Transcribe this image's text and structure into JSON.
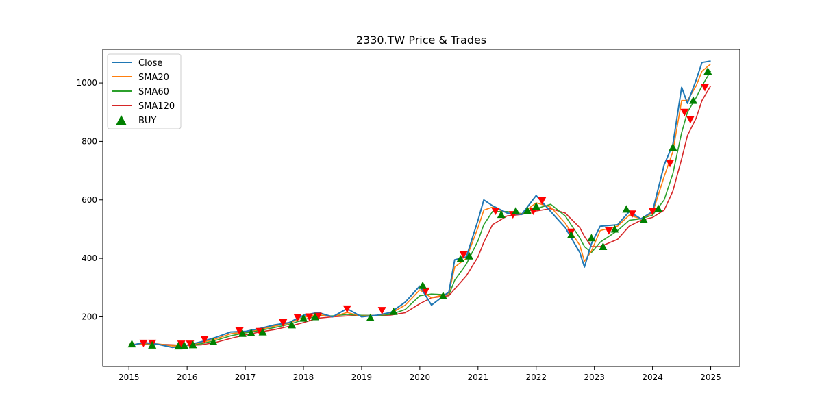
{
  "chart_data": {
    "type": "line",
    "title": "2330.TW Price & Trades",
    "xlabel": "",
    "ylabel": "",
    "xlim": [
      2014.55,
      2025.5
    ],
    "ylim": [
      30,
      1115
    ],
    "x_ticks": [
      2015,
      2016,
      2017,
      2018,
      2019,
      2020,
      2021,
      2022,
      2023,
      2024,
      2025
    ],
    "x_tick_labels": [
      "2015",
      "2016",
      "2017",
      "2018",
      "2019",
      "2020",
      "2021",
      "2022",
      "2023",
      "2024",
      "2025"
    ],
    "y_ticks": [
      200,
      400,
      600,
      800,
      1000
    ],
    "y_tick_labels": [
      "200",
      "400",
      "600",
      "800",
      "1000"
    ],
    "grid": false,
    "legend_position": "top-left",
    "legend": [
      "Close",
      "SMA20",
      "SMA60",
      "SMA120",
      "BUY"
    ],
    "series": [
      {
        "name": "Close",
        "color": "#1f77b4",
        "points": [
          [
            2015.0,
            100
          ],
          [
            2015.25,
            112
          ],
          [
            2015.5,
            106
          ],
          [
            2015.75,
            95
          ],
          [
            2016.0,
            103
          ],
          [
            2016.25,
            115
          ],
          [
            2016.5,
            130
          ],
          [
            2016.75,
            148
          ],
          [
            2017.0,
            150
          ],
          [
            2017.25,
            160
          ],
          [
            2017.5,
            172
          ],
          [
            2017.75,
            180
          ],
          [
            2018.0,
            205
          ],
          [
            2018.25,
            215
          ],
          [
            2018.5,
            200
          ],
          [
            2018.75,
            228
          ],
          [
            2019.0,
            200
          ],
          [
            2019.25,
            205
          ],
          [
            2019.5,
            215
          ],
          [
            2019.75,
            250
          ],
          [
            2020.0,
            305
          ],
          [
            2020.2,
            240
          ],
          [
            2020.5,
            285
          ],
          [
            2020.6,
            395
          ],
          [
            2020.8,
            405
          ],
          [
            2021.0,
            530
          ],
          [
            2021.1,
            600
          ],
          [
            2021.25,
            580
          ],
          [
            2021.5,
            555
          ],
          [
            2021.75,
            550
          ],
          [
            2022.0,
            615
          ],
          [
            2022.25,
            560
          ],
          [
            2022.5,
            505
          ],
          [
            2022.75,
            420
          ],
          [
            2022.83,
            370
          ],
          [
            2022.95,
            450
          ],
          [
            2023.1,
            510
          ],
          [
            2023.4,
            515
          ],
          [
            2023.6,
            560
          ],
          [
            2023.8,
            535
          ],
          [
            2024.0,
            560
          ],
          [
            2024.2,
            720
          ],
          [
            2024.35,
            790
          ],
          [
            2024.5,
            985
          ],
          [
            2024.6,
            930
          ],
          [
            2024.75,
            1010
          ],
          [
            2024.85,
            1070
          ],
          [
            2025.0,
            1075
          ]
        ]
      },
      {
        "name": "SMA20",
        "color": "#ff7f0e",
        "points": [
          [
            2015.0,
            102
          ],
          [
            2015.25,
            108
          ],
          [
            2015.5,
            107
          ],
          [
            2015.75,
            100
          ],
          [
            2016.0,
            102
          ],
          [
            2016.25,
            112
          ],
          [
            2016.5,
            125
          ],
          [
            2016.75,
            142
          ],
          [
            2017.0,
            148
          ],
          [
            2017.25,
            157
          ],
          [
            2017.5,
            168
          ],
          [
            2017.75,
            178
          ],
          [
            2018.0,
            198
          ],
          [
            2018.25,
            208
          ],
          [
            2018.5,
            200
          ],
          [
            2018.75,
            215
          ],
          [
            2019.0,
            202
          ],
          [
            2019.25,
            205
          ],
          [
            2019.5,
            212
          ],
          [
            2019.75,
            240
          ],
          [
            2020.0,
            292
          ],
          [
            2020.2,
            265
          ],
          [
            2020.5,
            280
          ],
          [
            2020.6,
            370
          ],
          [
            2020.8,
            400
          ],
          [
            2021.0,
            505
          ],
          [
            2021.1,
            565
          ],
          [
            2021.25,
            575
          ],
          [
            2021.5,
            555
          ],
          [
            2021.75,
            552
          ],
          [
            2022.0,
            590
          ],
          [
            2022.25,
            575
          ],
          [
            2022.5,
            520
          ],
          [
            2022.75,
            445
          ],
          [
            2022.83,
            390
          ],
          [
            2022.95,
            425
          ],
          [
            2023.1,
            495
          ],
          [
            2023.4,
            510
          ],
          [
            2023.6,
            548
          ],
          [
            2023.8,
            535
          ],
          [
            2024.0,
            555
          ],
          [
            2024.2,
            680
          ],
          [
            2024.35,
            765
          ],
          [
            2024.5,
            940
          ],
          [
            2024.6,
            940
          ],
          [
            2024.75,
            990
          ],
          [
            2024.85,
            1040
          ],
          [
            2025.0,
            1065
          ]
        ]
      },
      {
        "name": "SMA60",
        "color": "#2ca02c",
        "points": [
          [
            2015.0,
            104
          ],
          [
            2015.25,
            105
          ],
          [
            2015.5,
            106
          ],
          [
            2015.75,
            102
          ],
          [
            2016.0,
            101
          ],
          [
            2016.25,
            108
          ],
          [
            2016.5,
            120
          ],
          [
            2016.75,
            135
          ],
          [
            2017.0,
            145
          ],
          [
            2017.25,
            153
          ],
          [
            2017.5,
            163
          ],
          [
            2017.75,
            174
          ],
          [
            2018.0,
            190
          ],
          [
            2018.25,
            203
          ],
          [
            2018.5,
            203
          ],
          [
            2018.75,
            208
          ],
          [
            2019.0,
            205
          ],
          [
            2019.25,
            204
          ],
          [
            2019.5,
            208
          ],
          [
            2019.75,
            225
          ],
          [
            2020.0,
            272
          ],
          [
            2020.2,
            278
          ],
          [
            2020.5,
            275
          ],
          [
            2020.6,
            325
          ],
          [
            2020.8,
            380
          ],
          [
            2021.0,
            460
          ],
          [
            2021.1,
            515
          ],
          [
            2021.25,
            560
          ],
          [
            2021.5,
            560
          ],
          [
            2021.75,
            553
          ],
          [
            2022.0,
            570
          ],
          [
            2022.25,
            585
          ],
          [
            2022.5,
            545
          ],
          [
            2022.75,
            470
          ],
          [
            2022.83,
            440
          ],
          [
            2022.95,
            420
          ],
          [
            2023.1,
            455
          ],
          [
            2023.4,
            495
          ],
          [
            2023.6,
            530
          ],
          [
            2023.8,
            535
          ],
          [
            2024.0,
            548
          ],
          [
            2024.2,
            600
          ],
          [
            2024.35,
            690
          ],
          [
            2024.5,
            830
          ],
          [
            2024.6,
            900
          ],
          [
            2024.75,
            950
          ],
          [
            2024.85,
            990
          ],
          [
            2025.0,
            1040
          ]
        ]
      },
      {
        "name": "SMA120",
        "color": "#d62728",
        "points": [
          [
            2015.0,
            106
          ],
          [
            2015.25,
            106
          ],
          [
            2015.5,
            106
          ],
          [
            2015.75,
            104
          ],
          [
            2016.0,
            102
          ],
          [
            2016.25,
            104
          ],
          [
            2016.5,
            113
          ],
          [
            2016.75,
            126
          ],
          [
            2017.0,
            138
          ],
          [
            2017.25,
            148
          ],
          [
            2017.5,
            156
          ],
          [
            2017.75,
            167
          ],
          [
            2018.0,
            180
          ],
          [
            2018.25,
            195
          ],
          [
            2018.5,
            200
          ],
          [
            2018.75,
            203
          ],
          [
            2019.0,
            205
          ],
          [
            2019.25,
            204
          ],
          [
            2019.5,
            206
          ],
          [
            2019.75,
            214
          ],
          [
            2020.0,
            245
          ],
          [
            2020.2,
            265
          ],
          [
            2020.5,
            272
          ],
          [
            2020.6,
            295
          ],
          [
            2020.8,
            340
          ],
          [
            2021.0,
            405
          ],
          [
            2021.1,
            455
          ],
          [
            2021.25,
            515
          ],
          [
            2021.5,
            545
          ],
          [
            2021.75,
            550
          ],
          [
            2022.0,
            562
          ],
          [
            2022.25,
            570
          ],
          [
            2022.5,
            555
          ],
          [
            2022.75,
            505
          ],
          [
            2022.83,
            475
          ],
          [
            2022.95,
            440
          ],
          [
            2023.1,
            440
          ],
          [
            2023.4,
            465
          ],
          [
            2023.6,
            510
          ],
          [
            2023.8,
            530
          ],
          [
            2024.0,
            540
          ],
          [
            2024.2,
            565
          ],
          [
            2024.35,
            630
          ],
          [
            2024.5,
            740
          ],
          [
            2024.6,
            820
          ],
          [
            2024.75,
            880
          ],
          [
            2024.85,
            940
          ],
          [
            2025.0,
            990
          ]
        ]
      }
    ],
    "buy_markers": {
      "name": "BUY",
      "color": "#008000",
      "points": [
        [
          2015.05,
          107
        ],
        [
          2015.4,
          103
        ],
        [
          2015.85,
          100
        ],
        [
          2015.95,
          102
        ],
        [
          2016.1,
          104
        ],
        [
          2016.45,
          115
        ],
        [
          2016.95,
          143
        ],
        [
          2017.1,
          145
        ],
        [
          2017.3,
          148
        ],
        [
          2017.8,
          172
        ],
        [
          2018.0,
          195
        ],
        [
          2018.2,
          200
        ],
        [
          2019.15,
          197
        ],
        [
          2019.55,
          218
        ],
        [
          2020.05,
          307
        ],
        [
          2020.4,
          272
        ],
        [
          2020.7,
          398
        ],
        [
          2020.85,
          408
        ],
        [
          2021.4,
          550
        ],
        [
          2021.65,
          562
        ],
        [
          2021.85,
          563
        ],
        [
          2022.0,
          578
        ],
        [
          2022.6,
          480
        ],
        [
          2022.95,
          470
        ],
        [
          2023.15,
          440
        ],
        [
          2023.35,
          500
        ],
        [
          2023.55,
          568
        ],
        [
          2023.85,
          532
        ],
        [
          2024.1,
          570
        ],
        [
          2024.35,
          780
        ],
        [
          2024.7,
          940
        ],
        [
          2024.95,
          1040
        ]
      ]
    },
    "sell_markers": {
      "color": "#ff0000",
      "points": [
        [
          2015.25,
          110
        ],
        [
          2015.4,
          110
        ],
        [
          2015.9,
          107
        ],
        [
          2016.05,
          107
        ],
        [
          2016.3,
          123
        ],
        [
          2016.9,
          152
        ],
        [
          2017.25,
          150
        ],
        [
          2017.65,
          180
        ],
        [
          2017.9,
          198
        ],
        [
          2018.1,
          200
        ],
        [
          2018.25,
          202
        ],
        [
          2018.75,
          227
        ],
        [
          2019.35,
          222
        ],
        [
          2020.1,
          288
        ],
        [
          2020.75,
          413
        ],
        [
          2021.3,
          562
        ],
        [
          2021.6,
          550
        ],
        [
          2021.95,
          562
        ],
        [
          2022.1,
          597
        ],
        [
          2022.6,
          490
        ],
        [
          2023.25,
          495
        ],
        [
          2023.65,
          552
        ],
        [
          2024.0,
          562
        ],
        [
          2024.3,
          725
        ],
        [
          2024.55,
          900
        ],
        [
          2024.65,
          875
        ],
        [
          2024.9,
          985
        ]
      ]
    }
  }
}
